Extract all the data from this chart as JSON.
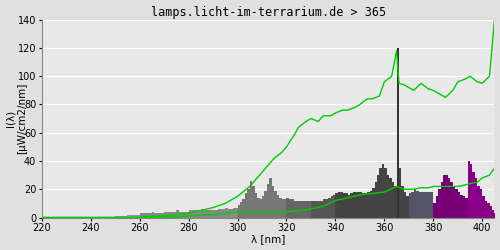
{
  "title": "lamps.licht-im-terrarium.de > 365",
  "xlabel": "λ [nm]",
  "ylabel": "I(λ)\n[μW/cm2/nm]",
  "xlim": [
    220,
    405
  ],
  "ylim": [
    0,
    140
  ],
  "yticks": [
    0,
    20,
    40,
    60,
    80,
    100,
    120,
    140
  ],
  "xticks": [
    220,
    240,
    260,
    280,
    300,
    320,
    340,
    360,
    380,
    400
  ],
  "bg_color": "#e0e0e0",
  "plot_bg_color": "#e8e8e8",
  "grid_color": "#ffffff",
  "title_fontsize": 8.5,
  "axis_fontsize": 7.5,
  "green_line1_x": [
    220,
    230,
    240,
    250,
    260,
    265,
    270,
    275,
    280,
    285,
    290,
    295,
    300,
    305,
    308,
    310,
    312,
    315,
    318,
    320,
    323,
    325,
    328,
    330,
    333,
    335,
    338,
    340,
    343,
    345,
    348,
    350,
    353,
    355,
    358,
    360,
    363,
    365,
    366,
    368,
    370,
    372,
    375,
    378,
    380,
    382,
    385,
    388,
    390,
    393,
    395,
    398,
    400,
    403,
    405
  ],
  "green_line1_y": [
    0,
    0,
    0,
    0,
    0,
    1,
    1,
    2,
    3,
    5,
    7,
    10,
    15,
    22,
    28,
    32,
    36,
    42,
    46,
    50,
    58,
    64,
    68,
    70,
    68,
    72,
    72,
    74,
    76,
    76,
    78,
    80,
    84,
    84,
    86,
    96,
    100,
    118,
    95,
    94,
    92,
    90,
    95,
    91,
    90,
    88,
    85,
    90,
    96,
    98,
    100,
    96,
    95,
    100,
    140
  ],
  "green_line2_x": [
    220,
    230,
    240,
    250,
    260,
    270,
    280,
    290,
    295,
    300,
    305,
    310,
    315,
    320,
    325,
    330,
    335,
    340,
    345,
    350,
    355,
    360,
    365,
    368,
    370,
    372,
    375,
    378,
    380,
    382,
    385,
    388,
    390,
    393,
    395,
    398,
    400,
    403,
    405
  ],
  "green_line2_y": [
    0,
    0,
    0,
    0,
    0,
    0,
    1,
    2,
    3,
    4,
    4,
    4,
    4,
    4,
    5,
    6,
    8,
    12,
    14,
    16,
    17,
    18,
    22,
    20,
    20,
    20,
    21,
    21,
    22,
    22,
    22,
    22,
    22,
    23,
    24,
    25,
    28,
    30,
    35
  ],
  "spectrum_segments": [
    {
      "x_start": 220,
      "x_end": 250,
      "color": "#aaaaaa",
      "baseline_y": 0,
      "peak_y": 0
    },
    {
      "x_start": 250,
      "x_end": 370,
      "color": "#555555",
      "baseline_y": 0,
      "peak_y": 0
    },
    {
      "x_start": 370,
      "x_end": 380,
      "color": "#666677",
      "baseline_y": 0,
      "peak_y": 0
    },
    {
      "x_start": 380,
      "x_end": 405,
      "color": "#880088",
      "baseline_y": 0,
      "peak_y": 0
    }
  ],
  "spectrum_x": [
    220,
    221,
    222,
    223,
    224,
    225,
    226,
    227,
    228,
    229,
    230,
    231,
    232,
    233,
    234,
    235,
    236,
    237,
    238,
    239,
    240,
    241,
    242,
    243,
    244,
    245,
    246,
    247,
    248,
    249,
    250,
    251,
    252,
    253,
    254,
    255,
    256,
    257,
    258,
    259,
    260,
    261,
    262,
    263,
    264,
    265,
    266,
    267,
    268,
    269,
    270,
    271,
    272,
    273,
    274,
    275,
    276,
    277,
    278,
    279,
    280,
    281,
    282,
    283,
    284,
    285,
    286,
    287,
    288,
    289,
    290,
    291,
    292,
    293,
    294,
    295,
    296,
    297,
    298,
    299,
    300,
    301,
    302,
    303,
    304,
    305,
    306,
    307,
    308,
    309,
    310,
    311,
    312,
    313,
    314,
    315,
    316,
    317,
    318,
    319,
    320,
    321,
    322,
    323,
    324,
    325,
    326,
    327,
    328,
    329,
    330,
    331,
    332,
    333,
    334,
    335,
    336,
    337,
    338,
    339,
    340,
    341,
    342,
    343,
    344,
    345,
    346,
    347,
    348,
    349,
    350,
    351,
    352,
    353,
    354,
    355,
    356,
    357,
    358,
    359,
    360,
    361,
    362,
    363,
    364,
    365,
    366,
    367,
    368,
    369,
    370,
    371,
    372,
    373,
    374,
    375,
    376,
    377,
    378,
    379,
    380,
    381,
    382,
    383,
    384,
    385,
    386,
    387,
    388,
    389,
    390,
    391,
    392,
    393,
    394,
    395,
    396,
    397,
    398,
    399,
    400,
    401,
    402,
    403,
    404,
    405
  ],
  "spectrum_y": [
    0,
    0,
    0,
    0,
    0,
    0,
    0,
    0,
    0,
    0,
    0,
    0,
    0,
    0,
    0,
    0,
    0,
    0,
    0,
    0,
    0,
    0,
    0,
    0,
    0,
    0,
    0,
    0,
    0,
    0,
    1,
    1,
    1,
    1,
    1,
    2,
    2,
    2,
    2,
    2,
    3,
    3,
    3,
    3,
    3,
    4,
    3,
    3,
    3,
    3,
    4,
    4,
    4,
    4,
    4,
    5,
    4,
    4,
    4,
    4,
    5,
    5,
    5,
    5,
    5,
    6,
    5,
    5,
    5,
    5,
    5,
    5,
    6,
    6,
    6,
    7,
    6,
    6,
    7,
    7,
    9,
    11,
    13,
    17,
    20,
    26,
    22,
    17,
    14,
    13,
    15,
    19,
    24,
    28,
    22,
    19,
    16,
    14,
    13,
    13,
    14,
    13,
    13,
    12,
    12,
    12,
    12,
    12,
    12,
    12,
    12,
    12,
    12,
    12,
    12,
    13,
    13,
    14,
    15,
    16,
    17,
    18,
    18,
    17,
    17,
    16,
    17,
    18,
    18,
    18,
    18,
    17,
    17,
    18,
    19,
    21,
    25,
    30,
    35,
    38,
    35,
    30,
    28,
    25,
    22,
    120,
    35,
    22,
    18,
    15,
    17,
    18,
    20,
    19,
    18,
    18,
    18,
    18,
    18,
    18,
    10,
    15,
    20,
    25,
    30,
    30,
    28,
    25,
    22,
    20,
    18,
    16,
    15,
    14,
    40,
    38,
    32,
    28,
    22,
    20,
    15,
    12,
    10,
    8,
    5,
    3
  ],
  "spectrum_colors": [
    "#aaaaaa",
    "#aaaaaa",
    "#aaaaaa",
    "#aaaaaa",
    "#aaaaaa",
    "#aaaaaa",
    "#aaaaaa",
    "#aaaaaa",
    "#aaaaaa",
    "#aaaaaa",
    "#aaaaaa",
    "#aaaaaa",
    "#aaaaaa",
    "#aaaaaa",
    "#aaaaaa",
    "#aaaaaa",
    "#aaaaaa",
    "#aaaaaa",
    "#aaaaaa",
    "#aaaaaa",
    "#aaaaaa",
    "#aaaaaa",
    "#aaaaaa",
    "#aaaaaa",
    "#aaaaaa",
    "#aaaaaa",
    "#aaaaaa",
    "#aaaaaa",
    "#aaaaaa",
    "#aaaaaa",
    "#999999",
    "#999999",
    "#999999",
    "#999999",
    "#999999",
    "#999999",
    "#999999",
    "#999999",
    "#999999",
    "#999999",
    "#888888",
    "#888888",
    "#888888",
    "#888888",
    "#888888",
    "#888888",
    "#888888",
    "#888888",
    "#888888",
    "#888888",
    "#888888",
    "#888888",
    "#888888",
    "#888888",
    "#888888",
    "#888888",
    "#888888",
    "#888888",
    "#888888",
    "#888888",
    "#888888",
    "#888888",
    "#888888",
    "#888888",
    "#888888",
    "#888888",
    "#888888",
    "#888888",
    "#888888",
    "#888888",
    "#888888",
    "#888888",
    "#888888",
    "#888888",
    "#888888",
    "#888888",
    "#888888",
    "#888888",
    "#888888",
    "#888888",
    "#777777",
    "#777777",
    "#777777",
    "#777777",
    "#777777",
    "#777777",
    "#777777",
    "#777777",
    "#777777",
    "#777777",
    "#777777",
    "#777777",
    "#777777",
    "#777777",
    "#777777",
    "#777777",
    "#777777",
    "#777777",
    "#777777",
    "#777777",
    "#666666",
    "#666666",
    "#666666",
    "#666666",
    "#666666",
    "#666666",
    "#666666",
    "#666666",
    "#666666",
    "#666666",
    "#555555",
    "#555555",
    "#555555",
    "#555555",
    "#555555",
    "#555555",
    "#555555",
    "#555555",
    "#555555",
    "#555555",
    "#444444",
    "#444444",
    "#444444",
    "#444444",
    "#444444",
    "#444444",
    "#444444",
    "#444444",
    "#444444",
    "#444444",
    "#444444",
    "#444444",
    "#444444",
    "#444444",
    "#444444",
    "#444444",
    "#444444",
    "#444444",
    "#444444",
    "#444444",
    "#444444",
    "#444444",
    "#444444",
    "#444444",
    "#444444",
    "#333333",
    "#444444",
    "#444444",
    "#444444",
    "#444444",
    "#555566",
    "#555566",
    "#555566",
    "#555566",
    "#555566",
    "#555566",
    "#555566",
    "#555566",
    "#555566",
    "#555566",
    "#770077",
    "#770077",
    "#770077",
    "#770077",
    "#770077",
    "#770077",
    "#770077",
    "#770077",
    "#770077",
    "#770077",
    "#770077",
    "#770077",
    "#770077",
    "#770077",
    "#880088",
    "#880088",
    "#880088",
    "#880088",
    "#880088",
    "#880088",
    "#880088",
    "#880088",
    "#880088",
    "#880088",
    "#880088",
    "#880088"
  ]
}
